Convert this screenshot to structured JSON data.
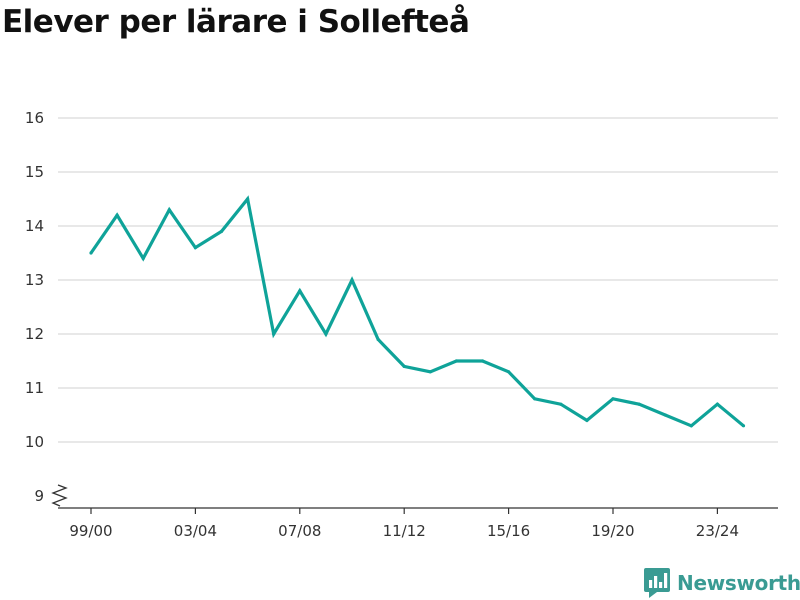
{
  "chart_data": {
    "type": "line",
    "title": "Elever per lärare i Sollefteå",
    "xlabel": "",
    "ylabel": "",
    "x": [
      "99/00",
      "00/01",
      "01/02",
      "02/03",
      "03/04",
      "04/05",
      "05/06",
      "06/07",
      "07/08",
      "08/09",
      "09/10",
      "10/11",
      "11/12",
      "12/13",
      "13/14",
      "14/15",
      "15/16",
      "16/17",
      "17/18",
      "18/19",
      "19/20",
      "20/21",
      "21/22",
      "22/23",
      "23/24",
      "24/25"
    ],
    "x_tick_labels": [
      "99/00",
      "03/04",
      "07/08",
      "11/12",
      "15/16",
      "19/20",
      "23/24"
    ],
    "y_tick_labels": [
      "9",
      "10",
      "11",
      "12",
      "13",
      "14",
      "15",
      "16"
    ],
    "series": [
      {
        "color": "#0fa399",
        "values": [
          13.5,
          14.2,
          13.4,
          14.3,
          13.6,
          13.9,
          14.5,
          12.0,
          12.8,
          12.0,
          13.0,
          11.9,
          11.4,
          11.3,
          11.5,
          11.5,
          11.3,
          10.8,
          10.7,
          10.4,
          10.8,
          10.7,
          10.5,
          10.3,
          10.7,
          10.3
        ]
      }
    ],
    "ylim": [
      9,
      16
    ],
    "y_axis_break": true,
    "grid": true,
    "legend": "none"
  },
  "brand": {
    "name": "Newsworthy",
    "icon": "newsworthy-logo-icon",
    "color": "#3a9b93"
  }
}
